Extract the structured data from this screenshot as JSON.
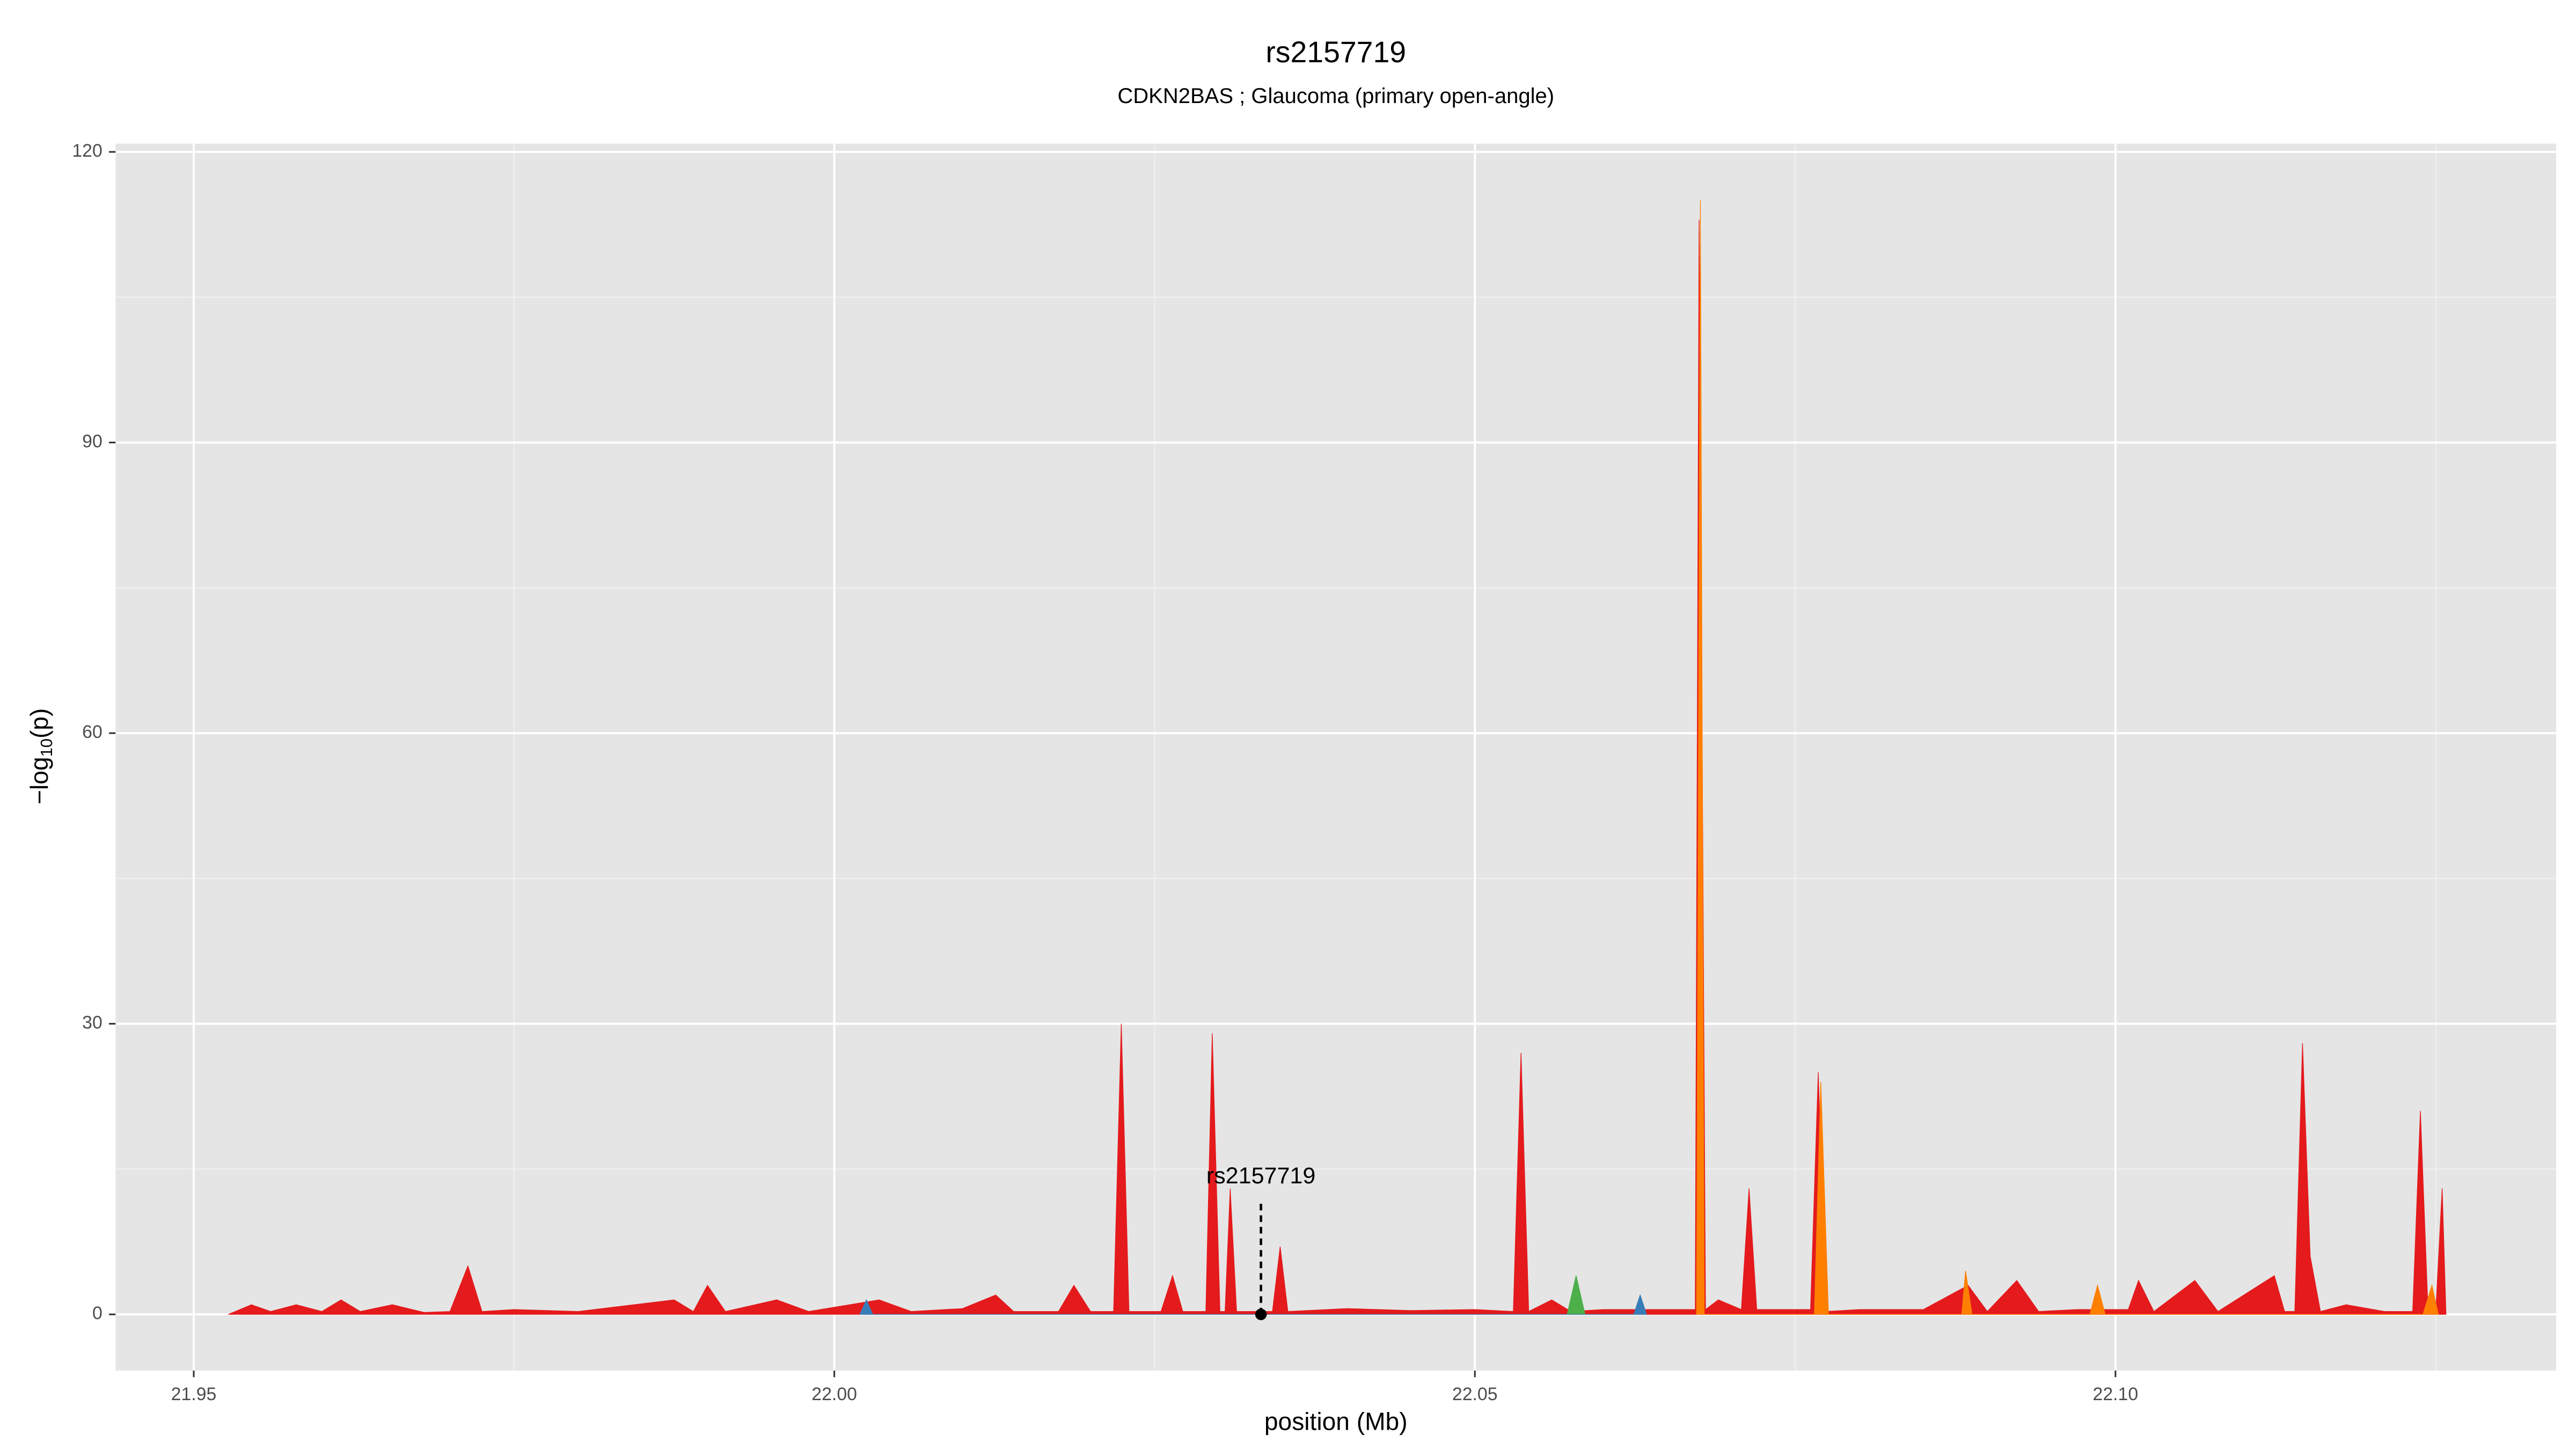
{
  "chart_data": {
    "type": "area",
    "title": "rs2157719",
    "subtitle": "CDKN2BAS ; Glaucoma (primary open-angle)",
    "x_label": "position (Mb)",
    "y_label": {
      "base": "−log",
      "subscript": "10",
      "suffix": "(p)"
    },
    "xlim": [
      21.9439,
      22.1344
    ],
    "ylim": [
      -5.8,
      120.85
    ],
    "xticks": [
      21.95,
      {
        "value": 22,
        "label": "22.00"
      },
      22.05,
      {
        "value": 22.1,
        "label": "22.10"
      }
    ],
    "yticks": [
      0,
      30,
      60,
      90,
      120
    ],
    "x_minor_grid": [
      21.975,
      22.025,
      22.075,
      22.125
    ],
    "y_minor_grid": [
      15,
      45,
      75,
      105
    ],
    "grid": true,
    "series": [
      {
        "color": "#e41a1c",
        "x": [
          21.9527,
          21.9545,
          21.956,
          21.958,
          21.96,
          21.9615,
          21.963,
          21.9655,
          21.968,
          21.97,
          21.9714,
          21.9725,
          21.975,
          21.98,
          21.9875,
          21.989,
          21.9901,
          21.9915,
          21.9955,
          21.998,
          22.0035,
          22.006,
          22.01,
          22.0126,
          22.014,
          22.0175,
          22.0187,
          22.02,
          22.0218,
          22.0224,
          22.023,
          22.0255,
          22.0264,
          22.0272,
          22.029,
          22.0295,
          22.0301,
          22.0305,
          22.0309,
          22.0314,
          22.0342,
          22.0348,
          22.0354,
          22.04,
          22.045,
          22.05,
          22.053,
          22.0536,
          22.0542,
          22.056,
          22.0575,
          22.06,
          22.0665,
          22.0672,
          22.0675,
          22.068,
          22.069,
          22.0708,
          22.0714,
          22.072,
          22.0762,
          22.0768,
          22.0774,
          22.08,
          22.085,
          22.0885,
          22.09,
          22.0923,
          22.094,
          22.097,
          22.101,
          22.1018,
          22.103,
          22.1062,
          22.108,
          22.1124,
          22.1132,
          22.114,
          22.1146,
          22.1152,
          22.116,
          22.118,
          22.121,
          22.1232,
          22.1238,
          22.1244,
          22.125,
          22.1255,
          22.1258
        ],
        "values": [
          0,
          1,
          0.3,
          1,
          0.3,
          1.5,
          0.3,
          1,
          0.2,
          0.3,
          5,
          0.3,
          0.5,
          0.3,
          1.5,
          0.3,
          3,
          0.3,
          1.5,
          0.3,
          1.5,
          0.3,
          0.6,
          2,
          0.3,
          0.3,
          3,
          0.3,
          0.3,
          30,
          0.3,
          0.3,
          4,
          0.3,
          0.3,
          29,
          0.3,
          0.3,
          13,
          0.3,
          0.3,
          7,
          0.3,
          0.6,
          0.4,
          0.5,
          0.3,
          27,
          0.3,
          1.5,
          0.3,
          0.5,
          0.5,
          0.5,
          113,
          0.5,
          1.5,
          0.5,
          13,
          0.5,
          0.5,
          25,
          0.3,
          0.5,
          0.5,
          3,
          0.3,
          3.5,
          0.3,
          0.5,
          0.5,
          3.5,
          0.3,
          3.5,
          0.3,
          4,
          0.3,
          0.3,
          28,
          6,
          0.3,
          1,
          0.3,
          0.3,
          21,
          0.3,
          0.3,
          13,
          0
        ]
      },
      {
        "color": "#ff7f00",
        "x": [
          22.0673,
          22.0676,
          22.0679,
          22.0765,
          22.077,
          22.0776,
          22.088,
          22.0883,
          22.0888,
          22.098,
          22.0986,
          22.0992,
          22.124,
          22.1247,
          22.1252
        ],
        "values": [
          0,
          115,
          0,
          0,
          24,
          0,
          0,
          4.5,
          0,
          0,
          3,
          0,
          0,
          3,
          0
        ]
      },
      {
        "color": "#4daf4a",
        "x": [
          22.0572,
          22.0579,
          22.0586
        ],
        "values": [
          0,
          4,
          0
        ]
      },
      {
        "color": "#377eb8",
        "x": [
          22.002,
          22.0025,
          22.003,
          22.0624,
          22.0629,
          22.0634
        ],
        "values": [
          0,
          1.5,
          0,
          0,
          2,
          0
        ]
      }
    ],
    "annotation": {
      "text": "rs2157719",
      "x": 22.0333,
      "y": 0
    }
  }
}
